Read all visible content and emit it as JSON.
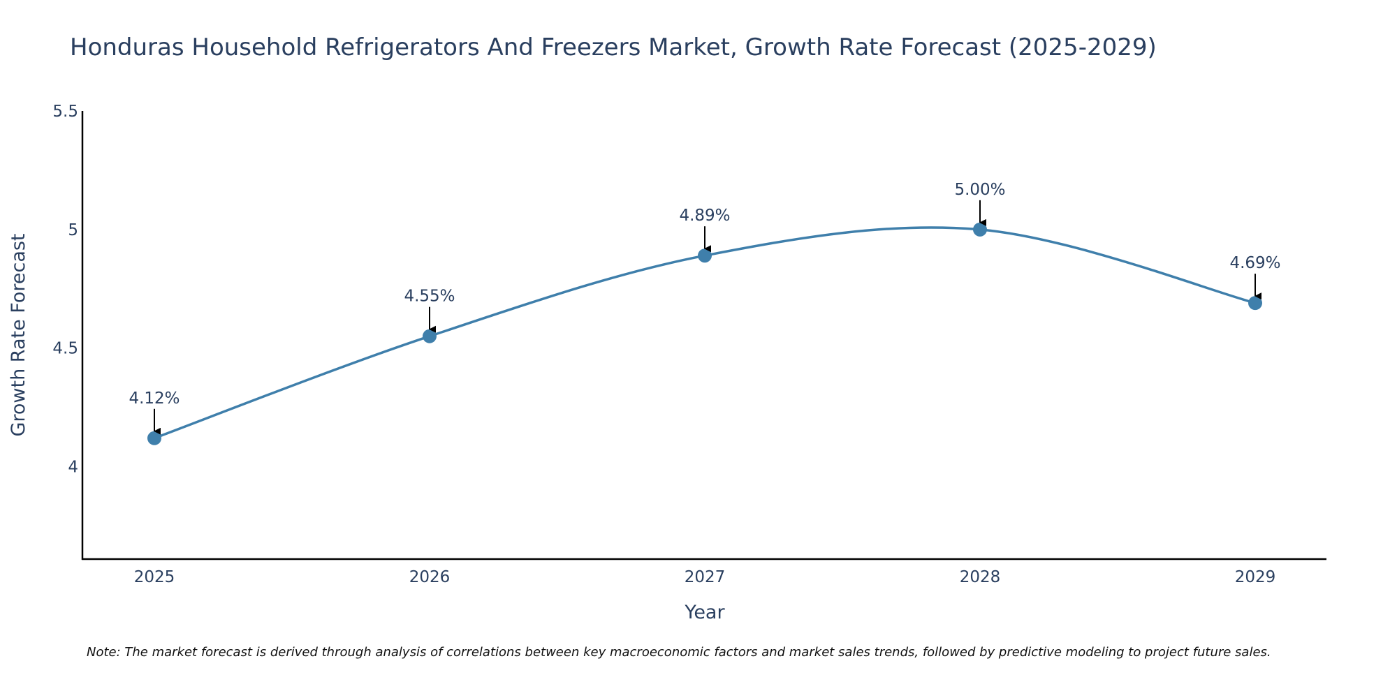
{
  "chart_data": {
    "type": "line",
    "title": "Honduras Household Refrigerators And Freezers Market, Growth Rate Forecast (2025-2029)",
    "xlabel": "Year",
    "ylabel": "Growth Rate Forecast",
    "categories": [
      "2025",
      "2026",
      "2027",
      "2028",
      "2029"
    ],
    "values": [
      4.12,
      4.55,
      4.89,
      5.0,
      4.69
    ],
    "data_labels": [
      "4.12%",
      "4.55%",
      "4.89%",
      "5.00%",
      "4.69%"
    ],
    "ylim": [
      3.61,
      5.5
    ],
    "yticks": [
      4,
      4.5,
      5,
      5.5
    ],
    "ytick_labels": [
      "4",
      "4.5",
      "5",
      "5.5"
    ],
    "grid": false,
    "line_color": "#3f7fab",
    "line_shape": "spline",
    "annotation_arrows": true,
    "note": "Note: The market forecast is derived through analysis of correlations between key macroeconomic factors and market sales trends, followed by predictive modeling to project future sales."
  }
}
